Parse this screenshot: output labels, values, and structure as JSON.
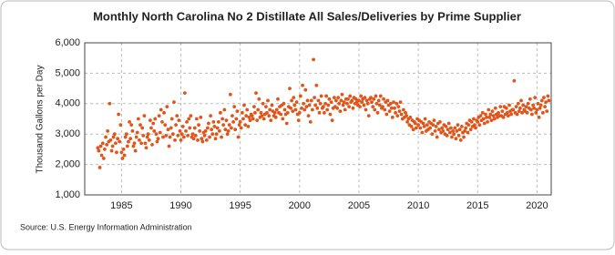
{
  "chart_data": {
    "type": "scatter",
    "title": "Monthly North Carolina No 2 Distillate All Sales/Deliveries by Prime Supplier",
    "ylabel": "Thousand Gallons per Day",
    "source": "Source: U.S. Energy Information Administration",
    "color": "#e0561a",
    "grid": true,
    "xlim": [
      1981.9,
      2021.2
    ],
    "xticks": [
      1985,
      1990,
      1995,
      2000,
      2005,
      2010,
      2015,
      2020
    ],
    "ylim": [
      1000,
      6000
    ],
    "yticks": [
      {
        "value": 1000,
        "label": "1,000"
      },
      {
        "value": 2000,
        "label": "2,000"
      },
      {
        "value": 3000,
        "label": "3,000"
      },
      {
        "value": 4000,
        "label": "4,000"
      },
      {
        "value": 5000,
        "label": "5,000"
      },
      {
        "value": 6000,
        "label": "6,000"
      }
    ],
    "x": [
      1983,
      1983.08,
      1983.17,
      1983.25,
      1983.33,
      1983.42,
      1983.5,
      1983.58,
      1983.67,
      1983.75,
      1983.83,
      1983.92,
      1984,
      1984.08,
      1984.17,
      1984.25,
      1984.33,
      1984.42,
      1984.5,
      1984.58,
      1984.67,
      1984.75,
      1984.83,
      1984.92,
      1985,
      1985.08,
      1985.17,
      1985.25,
      1985.33,
      1985.42,
      1985.5,
      1985.58,
      1985.67,
      1985.75,
      1985.83,
      1985.92,
      1986,
      1986.08,
      1986.17,
      1986.25,
      1986.33,
      1986.42,
      1986.5,
      1986.58,
      1986.67,
      1986.75,
      1986.83,
      1986.92,
      1987,
      1987.08,
      1987.17,
      1987.25,
      1987.33,
      1987.42,
      1987.5,
      1987.58,
      1987.67,
      1987.75,
      1987.83,
      1987.92,
      1988,
      1988.08,
      1988.17,
      1988.25,
      1988.33,
      1988.42,
      1988.5,
      1988.58,
      1988.67,
      1988.75,
      1988.83,
      1988.92,
      1989,
      1989.08,
      1989.17,
      1989.25,
      1989.33,
      1989.42,
      1989.5,
      1989.58,
      1989.67,
      1989.75,
      1989.83,
      1989.92,
      1990,
      1990.08,
      1990.17,
      1990.25,
      1990.33,
      1990.42,
      1990.5,
      1990.58,
      1990.67,
      1990.75,
      1990.83,
      1990.92,
      1991,
      1991.08,
      1991.17,
      1991.25,
      1991.33,
      1991.42,
      1991.5,
      1991.58,
      1991.67,
      1991.75,
      1991.83,
      1991.92,
      1992,
      1992.08,
      1992.17,
      1992.25,
      1992.33,
      1992.42,
      1992.5,
      1992.58,
      1992.67,
      1992.75,
      1992.83,
      1992.92,
      1993,
      1993.08,
      1993.17,
      1993.25,
      1993.33,
      1993.42,
      1993.5,
      1993.58,
      1993.67,
      1993.75,
      1993.83,
      1993.92,
      1994,
      1994.08,
      1994.17,
      1994.25,
      1994.33,
      1994.42,
      1994.5,
      1994.58,
      1994.67,
      1994.75,
      1994.83,
      1994.92,
      1995,
      1995.08,
      1995.17,
      1995.25,
      1995.33,
      1995.42,
      1995.5,
      1995.58,
      1995.67,
      1995.75,
      1995.83,
      1995.92,
      1996,
      1996.08,
      1996.17,
      1996.25,
      1996.33,
      1996.42,
      1996.5,
      1996.58,
      1996.67,
      1996.75,
      1996.83,
      1996.92,
      1997,
      1997.08,
      1997.17,
      1997.25,
      1997.33,
      1997.42,
      1997.5,
      1997.58,
      1997.67,
      1997.75,
      1997.83,
      1997.92,
      1998,
      1998.08,
      1998.17,
      1998.25,
      1998.33,
      1998.42,
      1998.5,
      1998.58,
      1998.67,
      1998.75,
      1998.83,
      1998.92,
      1999,
      1999.08,
      1999.17,
      1999.25,
      1999.33,
      1999.42,
      1999.5,
      1999.58,
      1999.67,
      1999.75,
      1999.83,
      1999.92,
      2000,
      2000.08,
      2000.17,
      2000.25,
      2000.33,
      2000.42,
      2000.5,
      2000.58,
      2000.67,
      2000.75,
      2000.83,
      2000.92,
      2001,
      2001.08,
      2001.17,
      2001.25,
      2001.33,
      2001.42,
      2001.5,
      2001.58,
      2001.67,
      2001.75,
      2001.83,
      2001.92,
      2002,
      2002.08,
      2002.17,
      2002.25,
      2002.33,
      2002.42,
      2002.5,
      2002.58,
      2002.67,
      2002.75,
      2002.83,
      2002.92,
      2003,
      2003.08,
      2003.17,
      2003.25,
      2003.33,
      2003.42,
      2003.5,
      2003.58,
      2003.67,
      2003.75,
      2003.83,
      2003.92,
      2004,
      2004.08,
      2004.17,
      2004.25,
      2004.33,
      2004.42,
      2004.5,
      2004.58,
      2004.67,
      2004.75,
      2004.83,
      2004.92,
      2005,
      2005.08,
      2005.17,
      2005.25,
      2005.33,
      2005.42,
      2005.5,
      2005.58,
      2005.67,
      2005.75,
      2005.83,
      2005.92,
      2006,
      2006.08,
      2006.17,
      2006.25,
      2006.33,
      2006.42,
      2006.5,
      2006.58,
      2006.67,
      2006.75,
      2006.83,
      2006.92,
      2007,
      2007.08,
      2007.17,
      2007.25,
      2007.33,
      2007.42,
      2007.5,
      2007.58,
      2007.67,
      2007.75,
      2007.83,
      2007.92,
      2008,
      2008.08,
      2008.17,
      2008.25,
      2008.33,
      2008.42,
      2008.5,
      2008.58,
      2008.67,
      2008.75,
      2008.83,
      2008.92,
      2009,
      2009.08,
      2009.17,
      2009.25,
      2009.33,
      2009.42,
      2009.5,
      2009.58,
      2009.67,
      2009.75,
      2009.83,
      2009.92,
      2010,
      2010.08,
      2010.17,
      2010.25,
      2010.33,
      2010.42,
      2010.5,
      2010.58,
      2010.67,
      2010.75,
      2010.83,
      2010.92,
      2011,
      2011.08,
      2011.17,
      2011.25,
      2011.33,
      2011.42,
      2011.5,
      2011.58,
      2011.67,
      2011.75,
      2011.83,
      2011.92,
      2012,
      2012.08,
      2012.17,
      2012.25,
      2012.33,
      2012.42,
      2012.5,
      2012.58,
      2012.67,
      2012.75,
      2012.83,
      2012.92,
      2013,
      2013.08,
      2013.17,
      2013.25,
      2013.33,
      2013.42,
      2013.5,
      2013.58,
      2013.67,
      2013.75,
      2013.83,
      2013.92,
      2014,
      2014.08,
      2014.17,
      2014.25,
      2014.33,
      2014.42,
      2014.5,
      2014.58,
      2014.67,
      2014.75,
      2014.83,
      2014.92,
      2015,
      2015.08,
      2015.17,
      2015.25,
      2015.33,
      2015.42,
      2015.5,
      2015.58,
      2015.67,
      2015.75,
      2015.83,
      2015.92,
      2016,
      2016.08,
      2016.17,
      2016.25,
      2016.33,
      2016.42,
      2016.5,
      2016.58,
      2016.67,
      2016.75,
      2016.83,
      2016.92,
      2017,
      2017.08,
      2017.17,
      2017.25,
      2017.33,
      2017.42,
      2017.5,
      2017.58,
      2017.67,
      2017.75,
      2017.83,
      2017.92,
      2018,
      2018.08,
      2018.17,
      2018.25,
      2018.33,
      2018.42,
      2018.5,
      2018.58,
      2018.67,
      2018.75,
      2018.83,
      2018.92,
      2019,
      2019.08,
      2019.17,
      2019.25,
      2019.33,
      2019.42,
      2019.5,
      2019.58,
      2019.67,
      2019.75,
      2019.83,
      2019.92,
      2020,
      2020.08,
      2020.17,
      2020.25,
      2020.33,
      2020.42,
      2020.5,
      2020.58,
      2020.67,
      2020.75,
      2020.83,
      2020.92,
      2021
    ],
    "values": [
      2550,
      2450,
      1900,
      2600,
      2300,
      2700,
      2200,
      2500,
      2900,
      2650,
      3100,
      2750,
      4000,
      2800,
      2450,
      2600,
      2900,
      3000,
      2700,
      2400,
      2850,
      3650,
      2750,
      3300,
      2400,
      2200,
      2500,
      2300,
      2900,
      3000,
      2600,
      2750,
      3400,
      2850,
      3300,
      3100,
      2600,
      2700,
      2450,
      2900,
      3050,
      3500,
      2800,
      3300,
      2700,
      3200,
      2950,
      3600,
      2700,
      2550,
      2900,
      3000,
      2800,
      3450,
      3200,
      2650,
      3350,
      3100,
      3500,
      3000,
      2750,
      2850,
      3600,
      3050,
      3800,
      3400,
      2900,
      3700,
      3300,
      2950,
      3900,
      3150,
      2600,
      2900,
      3200,
      3500,
      3000,
      4050,
      2800,
      3300,
      3600,
      2950,
      3450,
      3100,
      2800,
      3000,
      3250,
      2900,
      4350,
      3100,
      3400,
      2950,
      3500,
      3200,
      3600,
      2900,
      3000,
      2850,
      3200,
      2950,
      3500,
      2800,
      3300,
      3100,
      3550,
      2850,
      2750,
      3050,
      2950,
      3100,
      2800,
      3200,
      3350,
      2900,
      3600,
      3150,
      3000,
      3400,
      3250,
      2850,
      3000,
      3200,
      3400,
      3100,
      3700,
      2900,
      3500,
      3300,
      3800,
      3150,
      3450,
      3000,
      3100,
      3300,
      4300,
      3200,
      3600,
      3400,
      3900,
      3150,
      3500,
      3750,
      2900,
      3300,
      3400,
      3200,
      3700,
      3500,
      3950,
      3300,
      3600,
      3800,
      3250,
      3550,
      3450,
      3650,
      3600,
      3500,
      3900,
      3700,
      4350,
      3450,
      3800,
      4150,
      3550,
      3700,
      3600,
      4000,
      3500,
      3650,
      3900,
      3700,
      4100,
      3600,
      3800,
      3450,
      3950,
      3750,
      3600,
      3700,
      3550,
      3800,
      4150,
      3700,
      3900,
      3650,
      3950,
      3500,
      4000,
      3800,
      3650,
      3350,
      3700,
      3900,
      4500,
      3850,
      4100,
      3750,
      4200,
      3950,
      3800,
      4050,
      3650,
      3450,
      3700,
      4250,
      3850,
      4600,
      4000,
      3800,
      4450,
      3900,
      4100,
      3600,
      3950,
      3400,
      4100,
      3800,
      5450,
      4200,
      3950,
      4600,
      3850,
      4100,
      3700,
      4000,
      4250,
      3850,
      3900,
      3700,
      4000,
      4250,
      3800,
      3950,
      4150,
      3650,
      4050,
      3450,
      3850,
      4200,
      3900,
      4100,
      3850,
      4200,
      4000,
      3750,
      4100,
      4300,
      3950,
      4050,
      3800,
      4150,
      4000,
      4150,
      3900,
      4250,
      4050,
      4100,
      3850,
      4200,
      4000,
      4150,
      4050,
      3950,
      4100,
      3900,
      4250,
      4050,
      4150,
      3950,
      4200,
      3800,
      4100,
      4000,
      3600,
      4150,
      4200,
      4050,
      3900,
      4150,
      3800,
      4250,
      4000,
      3700,
      4100,
      3950,
      4250,
      3850,
      3900,
      4150,
      3800,
      4050,
      3650,
      4100,
      3950,
      3750,
      4000,
      3850,
      3550,
      4050,
      3850,
      3700,
      4000,
      3600,
      3900,
      3750,
      4050,
      3650,
      3500,
      3800,
      3550,
      3700,
      3600,
      3400,
      3500,
      3300,
      3550,
      3250,
      3450,
      3150,
      3400,
      3350,
      3200,
      3500,
      3300,
      3450,
      3200,
      3400,
      3050,
      3350,
      3250,
      3500,
      3100,
      3300,
      3150,
      3400,
      3200,
      3350,
      3000,
      3300,
      3450,
      3100,
      3250,
      2900,
      3350,
      3150,
      3400,
      3050,
      3200,
      3100,
      3300,
      3000,
      3250,
      2950,
      3150,
      3350,
      3050,
      3200,
      2900,
      3100,
      3000,
      3200,
      2850,
      3100,
      3300,
      2950,
      3150,
      2800,
      3250,
      3050,
      2900,
      3100,
      3200,
      3350,
      3050,
      3300,
      3450,
      3150,
      3400,
      3250,
      3500,
      3300,
      3200,
      3450,
      3400,
      3550,
      3300,
      3600,
      3450,
      3700,
      3500,
      3350,
      3650,
      3550,
      3400,
      3800,
      3550,
      3650,
      3450,
      3750,
      3600,
      3500,
      3850,
      3650,
      3550,
      3700,
      3600,
      3900,
      3600,
      3750,
      3550,
      3900,
      3650,
      3850,
      3700,
      3600,
      3950,
      3750,
      3650,
      3800,
      3800,
      4750,
      3700,
      3900,
      3650,
      4000,
      3750,
      3850,
      4100,
      3700,
      3950,
      3800,
      3750,
      3900,
      3700,
      4000,
      3850,
      4150,
      3800,
      3650,
      3950,
      3850,
      4200,
      3700,
      3800,
      4000,
      3550,
      3850,
      3950,
      4100,
      3700,
      4200,
      3900,
      4050,
      3750,
      4250,
      4100
    ]
  }
}
